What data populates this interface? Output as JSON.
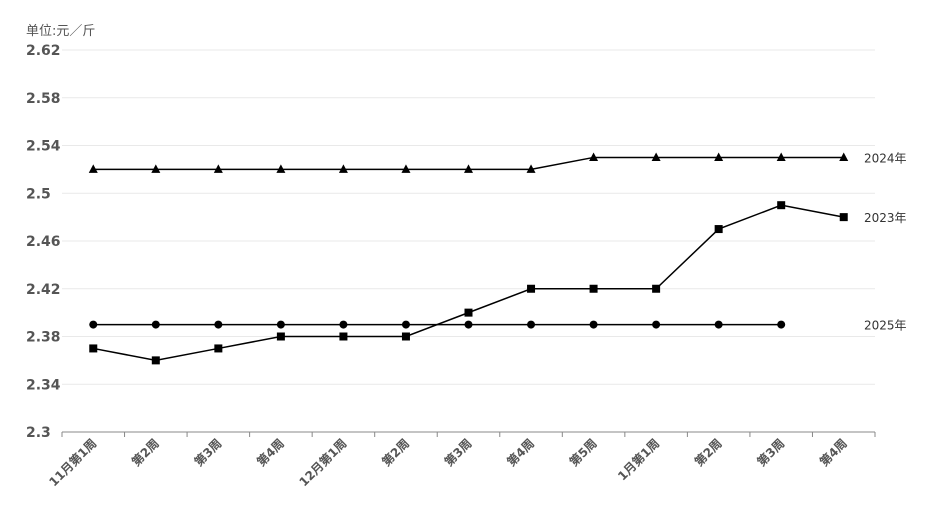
{
  "chart_data": {
    "type": "line",
    "unit_label": "单位:元／斤",
    "categories": [
      "11月第1周",
      "第2周",
      "第3周",
      "第4周",
      "12月第1周",
      "第2周",
      "第3周",
      "第4周",
      "第5周",
      "1月第1周",
      "第2周",
      "第3周",
      "第4周"
    ],
    "ylim": [
      2.3,
      2.62
    ],
    "yticks": [
      "2.3",
      "2.34",
      "2.38",
      "2.42",
      "2.46",
      "2.5",
      "2.54",
      "2.58",
      "2.62"
    ],
    "grid": true,
    "legend": "inline-right",
    "series": [
      {
        "name": "2024年",
        "marker": "triangle",
        "values": [
          2.52,
          2.52,
          2.52,
          2.52,
          2.52,
          2.52,
          2.52,
          2.52,
          2.53,
          2.53,
          2.53,
          2.53,
          2.53
        ]
      },
      {
        "name": "2023年",
        "marker": "square",
        "values": [
          2.37,
          2.36,
          2.37,
          2.38,
          2.38,
          2.38,
          2.4,
          2.42,
          2.42,
          2.42,
          2.47,
          2.49,
          2.48
        ]
      },
      {
        "name": "2025年",
        "marker": "circle",
        "values": [
          2.39,
          2.39,
          2.39,
          2.39,
          2.39,
          2.39,
          2.39,
          2.39,
          2.39,
          2.39,
          2.39,
          2.39,
          null
        ]
      }
    ]
  }
}
